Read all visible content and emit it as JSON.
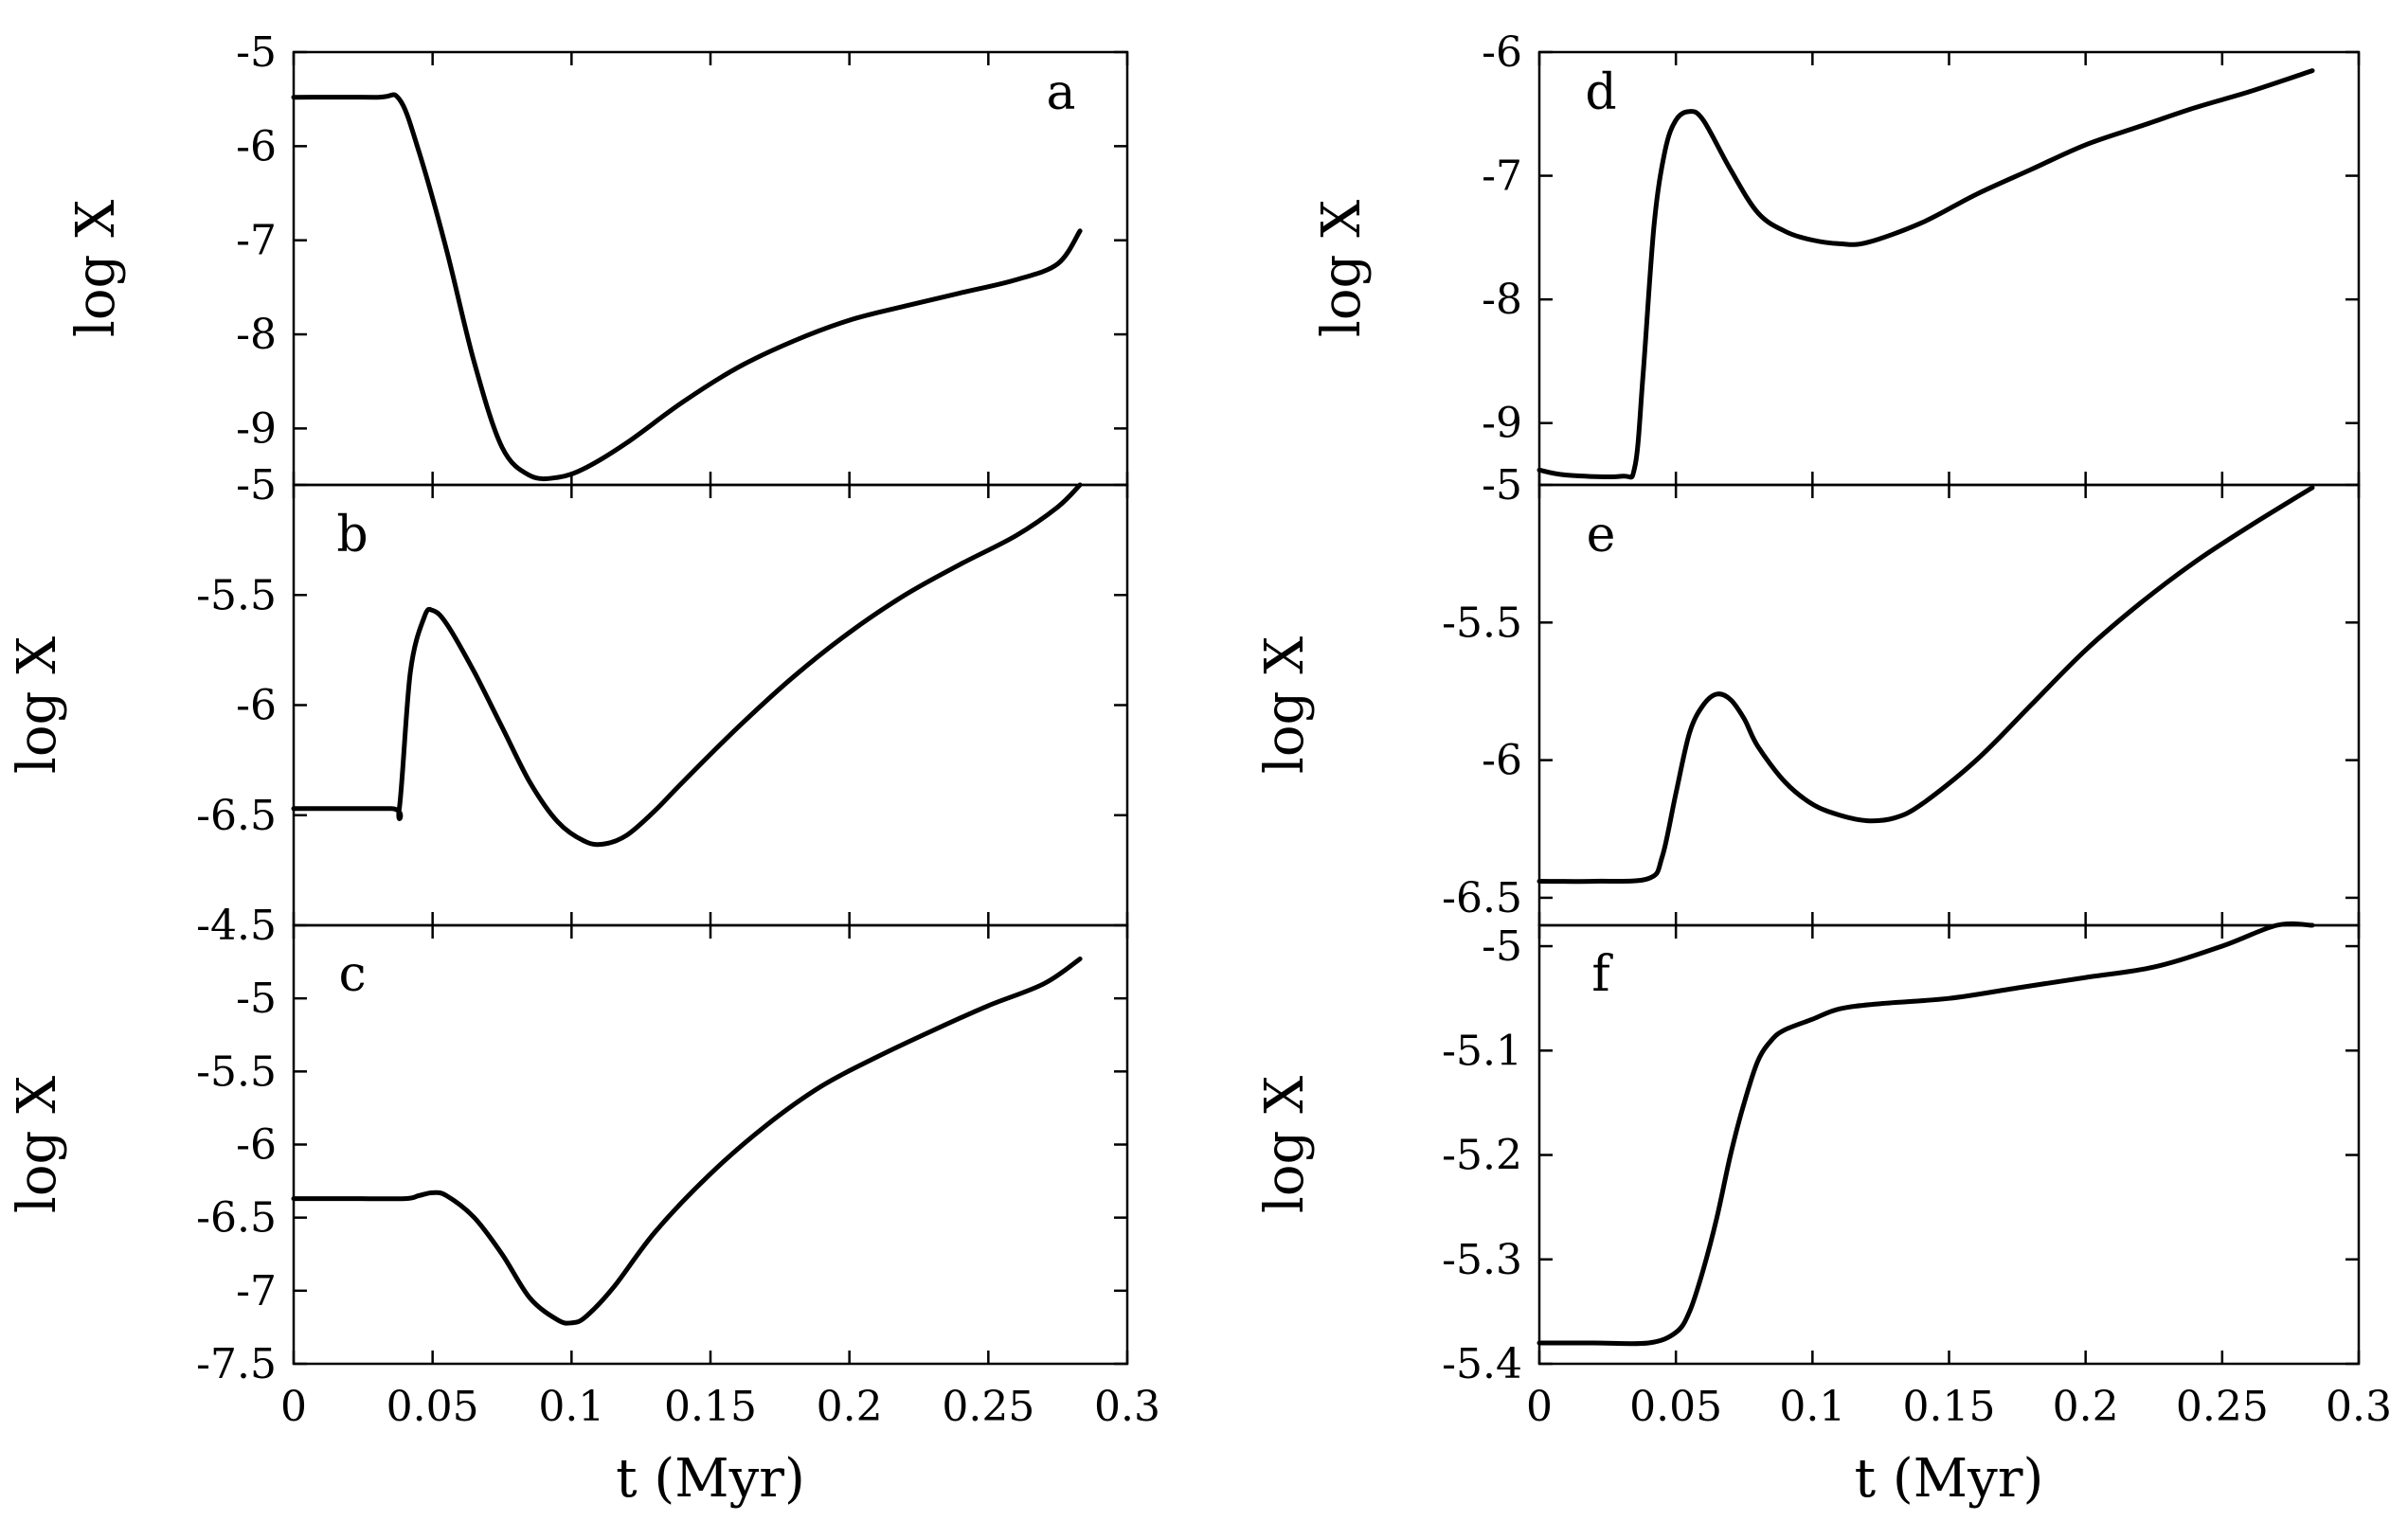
{
  "chart_data": [
    {
      "type": "line",
      "panel": "a",
      "xlabel": "",
      "ylabel": "log X",
      "xlim": [
        0,
        0.3
      ],
      "ylim": [
        -9.6,
        -5
      ],
      "yticks": [
        "-5",
        "-6",
        "-7",
        "-8",
        "-9"
      ],
      "x": [
        0,
        0.03,
        0.038,
        0.045,
        0.055,
        0.065,
        0.075,
        0.085,
        0.095,
        0.105,
        0.12,
        0.14,
        0.16,
        0.18,
        0.2,
        0.22,
        0.24,
        0.26,
        0.275,
        0.283
      ],
      "values": [
        -5.48,
        -5.48,
        -5.5,
        -6.05,
        -7.1,
        -8.3,
        -9.2,
        -9.5,
        -9.52,
        -9.42,
        -9.15,
        -8.72,
        -8.35,
        -8.07,
        -7.85,
        -7.7,
        -7.56,
        -7.42,
        -7.25,
        -6.9
      ]
    },
    {
      "type": "line",
      "panel": "b",
      "xlabel": "",
      "ylabel": "log X",
      "xlim": [
        0,
        0.3
      ],
      "ylim": [
        -7,
        -5
      ],
      "yticks": [
        "-5",
        "-5.5",
        "-6",
        "-6.5"
      ],
      "x": [
        0,
        0.035,
        0.038,
        0.042,
        0.047,
        0.05,
        0.055,
        0.065,
        0.075,
        0.085,
        0.095,
        0.105,
        0.112,
        0.12,
        0.13,
        0.14,
        0.16,
        0.18,
        0.2,
        0.22,
        0.24,
        0.26,
        0.275,
        0.283
      ],
      "values": [
        -6.47,
        -6.47,
        -6.47,
        -5.85,
        -5.6,
        -5.57,
        -5.63,
        -5.85,
        -6.1,
        -6.35,
        -6.53,
        -6.62,
        -6.63,
        -6.59,
        -6.48,
        -6.35,
        -6.1,
        -5.87,
        -5.67,
        -5.5,
        -5.36,
        -5.23,
        -5.1,
        -4.98
      ]
    },
    {
      "type": "line",
      "panel": "c",
      "xlabel": "t (Myr)",
      "ylabel": "log X",
      "xlim": [
        0,
        0.3
      ],
      "ylim": [
        -7.5,
        -4.5
      ],
      "xticks": [
        "0",
        "0.05",
        "0.1",
        "0.15",
        "0.2",
        "0.25",
        "0.3"
      ],
      "yticks": [
        "-4.5",
        "-5",
        "-5.5",
        "-6",
        "-6.5",
        "-7",
        "-7.5"
      ],
      "x": [
        0,
        0.02,
        0.04,
        0.045,
        0.05,
        0.055,
        0.065,
        0.075,
        0.085,
        0.095,
        0.1,
        0.105,
        0.115,
        0.13,
        0.15,
        0.17,
        0.19,
        0.21,
        0.23,
        0.25,
        0.27,
        0.283
      ],
      "values": [
        -6.37,
        -6.37,
        -6.37,
        -6.35,
        -6.33,
        -6.35,
        -6.5,
        -6.75,
        -7.05,
        -7.2,
        -7.22,
        -7.18,
        -6.98,
        -6.6,
        -6.2,
        -5.87,
        -5.6,
        -5.4,
        -5.22,
        -5.05,
        -4.9,
        -4.73
      ]
    },
    {
      "type": "line",
      "panel": "d",
      "xlabel": "",
      "ylabel": "log X",
      "xlim": [
        0,
        0.3
      ],
      "ylim": [
        -9.5,
        -6
      ],
      "yticks": [
        "-6",
        "-7",
        "-8",
        "-9"
      ],
      "x": [
        0,
        0.01,
        0.03,
        0.035,
        0.038,
        0.042,
        0.046,
        0.05,
        0.055,
        0.06,
        0.07,
        0.08,
        0.09,
        0.1,
        0.11,
        0.12,
        0.14,
        0.16,
        0.18,
        0.2,
        0.22,
        0.24,
        0.26,
        0.283
      ],
      "values": [
        -9.38,
        -9.42,
        -9.43,
        -9.35,
        -8.6,
        -7.4,
        -6.8,
        -6.55,
        -6.48,
        -6.55,
        -6.95,
        -7.3,
        -7.45,
        -7.52,
        -7.55,
        -7.54,
        -7.38,
        -7.15,
        -6.95,
        -6.75,
        -6.6,
        -6.45,
        -6.32,
        -6.15
      ]
    },
    {
      "type": "line",
      "panel": "e",
      "xlabel": "",
      "ylabel": "log X",
      "xlim": [
        0,
        0.3
      ],
      "ylim": [
        -6.6,
        -5
      ],
      "yticks": [
        "-5",
        "-5.5",
        "-6",
        "-6.5"
      ],
      "x": [
        0,
        0.02,
        0.04,
        0.045,
        0.05,
        0.055,
        0.06,
        0.065,
        0.07,
        0.075,
        0.08,
        0.09,
        0.1,
        0.11,
        0.12,
        0.13,
        0.14,
        0.16,
        0.18,
        0.2,
        0.22,
        0.24,
        0.26,
        0.283
      ],
      "values": [
        -6.44,
        -6.44,
        -6.43,
        -6.35,
        -6.12,
        -5.9,
        -5.8,
        -5.76,
        -5.78,
        -5.85,
        -5.95,
        -6.08,
        -6.16,
        -6.2,
        -6.22,
        -6.21,
        -6.16,
        -6.0,
        -5.8,
        -5.6,
        -5.43,
        -5.28,
        -5.15,
        -5.01
      ]
    },
    {
      "type": "line",
      "panel": "f",
      "xlabel": "t (Myr)",
      "ylabel": "log X",
      "xlim": [
        0,
        0.3
      ],
      "ylim": [
        -5.4,
        -4.98
      ],
      "xticks": [
        "0",
        "0.05",
        "0.1",
        "0.15",
        "0.2",
        "0.25",
        "0.3"
      ],
      "yticks": [
        "-5",
        "-5.1",
        "-5.2",
        "-5.3",
        "-5.4"
      ],
      "x": [
        0,
        0.02,
        0.04,
        0.05,
        0.055,
        0.06,
        0.065,
        0.07,
        0.075,
        0.08,
        0.085,
        0.09,
        0.1,
        0.11,
        0.125,
        0.15,
        0.175,
        0.2,
        0.225,
        0.25,
        0.27,
        0.283
      ],
      "values": [
        -5.38,
        -5.38,
        -5.38,
        -5.37,
        -5.35,
        -5.31,
        -5.26,
        -5.2,
        -5.15,
        -5.11,
        -5.09,
        -5.08,
        -5.07,
        -5.06,
        -5.055,
        -5.05,
        -5.04,
        -5.03,
        -5.02,
        -5.0,
        -4.98,
        -4.97
      ]
    }
  ]
}
